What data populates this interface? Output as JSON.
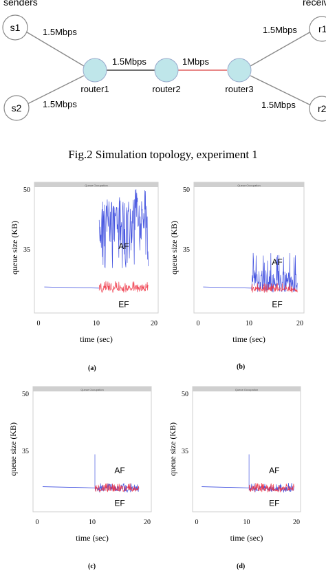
{
  "topology": {
    "senders_label": "senders",
    "receivers_label": "receivers",
    "nodes": {
      "s1": "s1",
      "s2": "s2",
      "router1": "router1",
      "router2": "router2",
      "router3": "router3",
      "r1": "r1",
      "r2": "r2"
    },
    "links": {
      "s1_router1": "1.5Mbps",
      "s2_router1": "1.5Mbps",
      "router1_router2": "1.5Mbps",
      "router2_router3": "1Mbps",
      "router3_r1": "1.5Mbps",
      "router3_r2": "1.5Mbps"
    },
    "colors": {
      "node_fill": "#bfe6ea",
      "bottleneck_link": "#e06060",
      "link": "#808080"
    }
  },
  "caption": "Fig.2 Simulation topology, experiment 1",
  "chart_data": [
    {
      "type": "line",
      "panel_label": "(a)",
      "header": "Queue Occupation",
      "xlabel": "time (sec)",
      "ylabel": "queue size (KB)",
      "xlim": [
        0,
        20
      ],
      "ylim": [
        20,
        50
      ],
      "x_ticks": [
        0,
        10,
        20
      ],
      "y_ticks": [
        50,
        35
      ],
      "series": [
        {
          "name": "AF",
          "color": "#3344dd",
          "start": 1,
          "change": 10.5,
          "end": 19,
          "pre_level": 25.5,
          "post_min": 30,
          "post_max": 50,
          "post_mean": 42
        },
        {
          "name": "EF",
          "color": "#ee3344",
          "start": 10.5,
          "end": 19,
          "post_min": 24,
          "post_max": 27,
          "post_mean": 25.3
        }
      ]
    },
    {
      "type": "line",
      "panel_label": "(b)",
      "header": "Queue Occupation",
      "xlabel": "time (sec)",
      "ylabel": "queue size (KB)",
      "xlim": [
        0,
        20
      ],
      "ylim": [
        20,
        50
      ],
      "x_ticks": [
        0,
        10,
        20
      ],
      "y_ticks": [
        50,
        35
      ],
      "series": [
        {
          "name": "AF",
          "color": "#3344dd",
          "start": 1,
          "change": 10.5,
          "end": 19.5,
          "pre_level": 25.5,
          "post_min": 24,
          "post_max": 34,
          "post_mean": 27
        },
        {
          "name": "EF",
          "color": "#ee3344",
          "start": 10.5,
          "end": 19.5,
          "post_min": 24,
          "post_max": 26.5,
          "post_mean": 25
        }
      ]
    },
    {
      "type": "line",
      "panel_label": "(c)",
      "header": "Queue Occupation",
      "xlabel": "time (sec)",
      "ylabel": "queue size (KB)",
      "xlim": [
        0,
        20
      ],
      "ylim": [
        20,
        50
      ],
      "x_ticks": [
        0,
        10,
        20
      ],
      "y_ticks": [
        50,
        35
      ],
      "series": [
        {
          "name": "AF",
          "color": "#3344dd",
          "start": 1,
          "change": 10.5,
          "end": 18.5,
          "pre_level": 25.5,
          "spike": 34,
          "post_min": 24,
          "post_max": 26.5,
          "post_mean": 25
        },
        {
          "name": "EF",
          "color": "#ee3344",
          "start": 10.5,
          "end": 18.5,
          "post_min": 24,
          "post_max": 26.5,
          "post_mean": 25
        }
      ]
    },
    {
      "type": "line",
      "panel_label": "(d)",
      "header": "Queue Occupation",
      "xlabel": "time (sec)",
      "ylabel": "queue size (KB)",
      "xlim": [
        0,
        20
      ],
      "ylim": [
        20,
        50
      ],
      "x_ticks": [
        0,
        10,
        20
      ],
      "y_ticks": [
        50,
        35
      ],
      "series": [
        {
          "name": "AF",
          "color": "#3344dd",
          "start": 1,
          "change": 10.5,
          "end": 19.5,
          "pre_level": 25.5,
          "spike": 34,
          "post_min": 24,
          "post_max": 26.5,
          "post_mean": 25
        },
        {
          "name": "EF",
          "color": "#ee3344",
          "start": 10.5,
          "end": 19.5,
          "post_min": 24,
          "post_max": 26.5,
          "post_mean": 25
        }
      ]
    }
  ]
}
